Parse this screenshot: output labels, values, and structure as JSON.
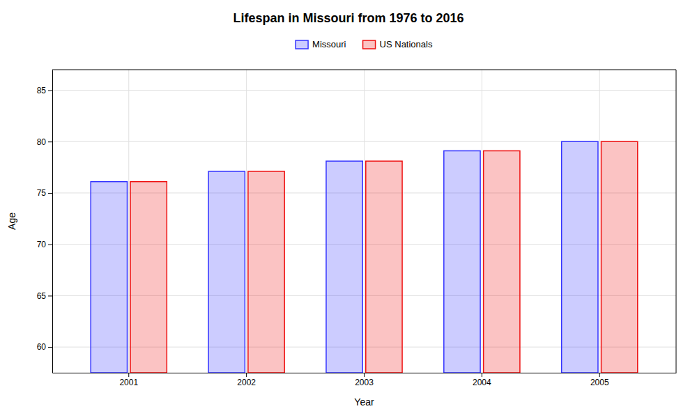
{
  "chart_data": {
    "type": "bar",
    "title": "Lifespan in Missouri from 1976 to 2016",
    "x_label": "Year",
    "y_label": "Age",
    "categories": [
      "2001",
      "2002",
      "2003",
      "2004",
      "2005"
    ],
    "series": [
      {
        "name": "Missouri",
        "color": "#3333ff",
        "values": [
          76.1,
          77.1,
          78.1,
          79.1,
          80.0
        ]
      },
      {
        "name": "US Nationals",
        "color": "#ee1111",
        "values": [
          76.1,
          77.1,
          78.1,
          79.1,
          80.0
        ]
      }
    ],
    "ylim": [
      57.5,
      87
    ],
    "yticks": [
      60,
      65,
      70,
      75,
      80,
      85
    ],
    "grid": true,
    "legend": "top"
  }
}
